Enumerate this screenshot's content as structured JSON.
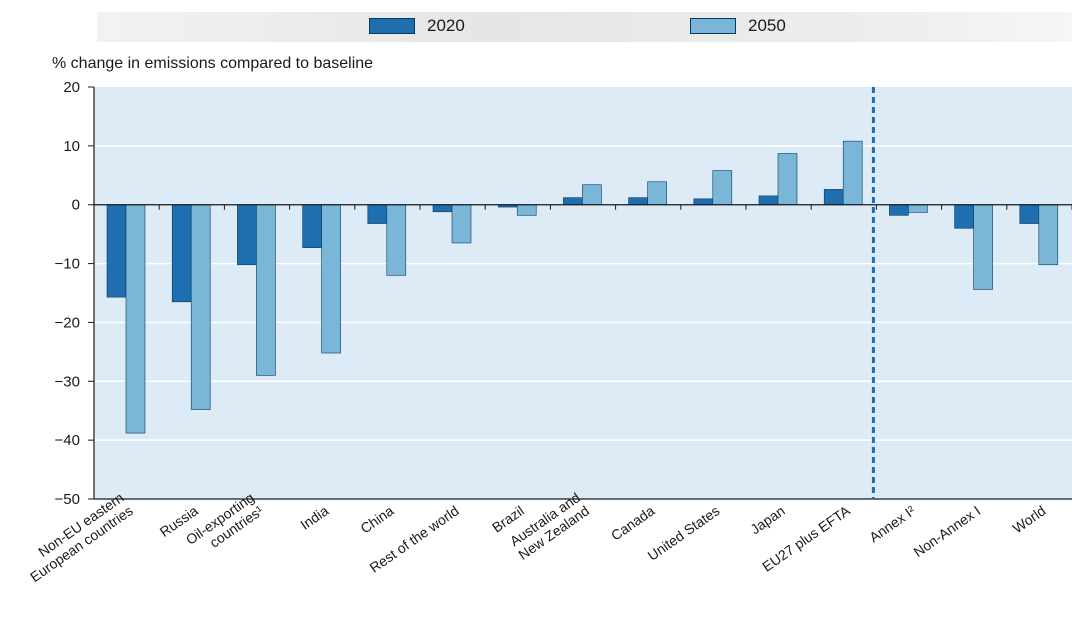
{
  "legend": [
    {
      "label": "2020",
      "color": "#1f6fb0"
    },
    {
      "label": "2050",
      "color": "#7ab6d8"
    }
  ],
  "colors": {
    "plot_background": "#dcebf5",
    "grid": "#ffffff",
    "divider": "#1f6fb0"
  },
  "chart_data": {
    "type": "bar",
    "ylabel": "% change in emissions compared to baseline",
    "ylim": [
      -50,
      20
    ],
    "yticks": [
      20,
      10,
      0,
      -10,
      -20,
      -30,
      -40,
      -50
    ],
    "grid": true,
    "legend_position": "top",
    "categories": [
      "Non-EU eastern|European countries",
      "Russia",
      "Oil-exporting|countries¹",
      "India",
      "China",
      "Rest of the world",
      "Brazil",
      "Australia and|New Zealand",
      "Canada",
      "United States",
      "Japan",
      "EU27 plus EFTA",
      "Annex I²",
      "Non-Annex I",
      "World"
    ],
    "series": [
      {
        "name": "2020",
        "values": [
          -15.7,
          -16.5,
          -10.2,
          -7.3,
          -3.2,
          -1.2,
          -0.4,
          1.2,
          1.2,
          1.0,
          1.5,
          2.6,
          -1.8,
          -4.0,
          -3.2
        ]
      },
      {
        "name": "2050",
        "values": [
          -38.8,
          -34.8,
          -29.0,
          -25.2,
          -12.0,
          -6.5,
          -1.8,
          3.4,
          3.9,
          5.8,
          8.7,
          10.8,
          -1.3,
          -14.4,
          -10.2
        ]
      }
    ],
    "divider_after_index": 11
  }
}
